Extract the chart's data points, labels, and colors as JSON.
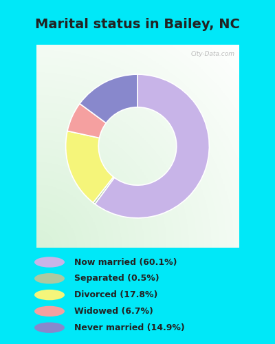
{
  "title": "Marital status in Bailey, NC",
  "slices": [
    60.1,
    0.5,
    17.8,
    6.7,
    14.9
  ],
  "labels": [
    "Now married (60.1%)",
    "Separated (0.5%)",
    "Divorced (17.8%)",
    "Widowed (6.7%)",
    "Never married (14.9%)"
  ],
  "colors": [
    "#c8b4e8",
    "#adc9a0",
    "#f5f57a",
    "#f5a0a0",
    "#8888cc"
  ],
  "legend_dot_colors": [
    "#c8b4e8",
    "#adc9a0",
    "#f5f57a",
    "#f5a0a0",
    "#8888cc"
  ],
  "bg_cyan": "#00e8f8",
  "title_fontsize": 14,
  "watermark": "City-Data.com",
  "donut_outer": 0.92,
  "donut_width": 0.42
}
